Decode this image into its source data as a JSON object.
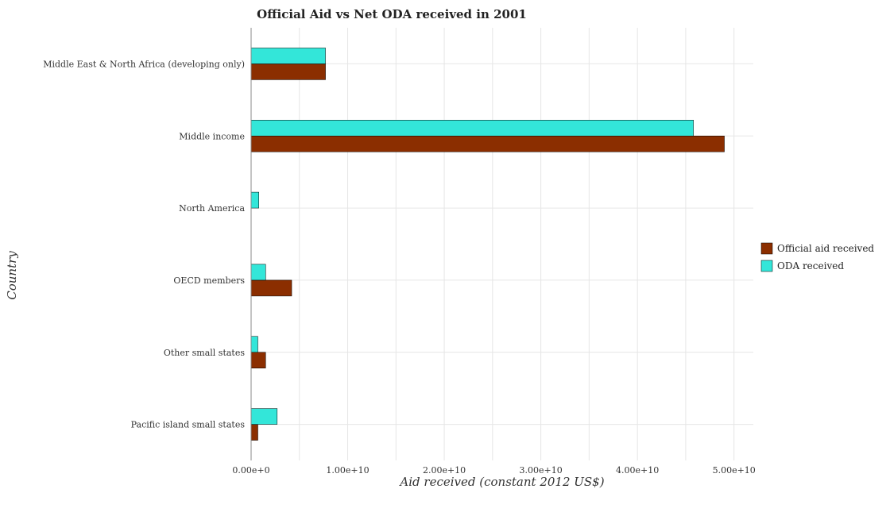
{
  "chart_data": {
    "type": "bar",
    "orientation": "horizontal",
    "title": "Official Aid vs Net ODA received in 2001",
    "xlabel": "Aid received (constant 2012 US$)",
    "ylabel": "Country",
    "categories": [
      "Middle East & North Africa (developing only)",
      "Middle income",
      "North America",
      "OECD members",
      "Other small states",
      "Pacific island small states"
    ],
    "series": [
      {
        "name": "Official aid received",
        "color": "#8b2e00",
        "values": [
          7700000000.0,
          49000000000.0,
          0,
          4200000000.0,
          1500000000.0,
          700000000.0
        ]
      },
      {
        "name": "ODA received",
        "color": "#33e6d9",
        "values": [
          7700000000.0,
          45800000000.0,
          800000000.0,
          1500000000.0,
          700000000.0,
          2700000000.0
        ]
      }
    ],
    "xlim": [
      0,
      52000000000.0
    ],
    "xticks": [
      0,
      10000000000.0,
      20000000000.0,
      30000000000.0,
      40000000000.0,
      50000000000.0
    ],
    "xtick_labels": [
      "0.00e+0",
      "1.00e+10",
      "2.00e+10",
      "3.00e+10",
      "4.00e+10",
      "5.00e+10"
    ],
    "grid": true,
    "legend_position": "right"
  }
}
